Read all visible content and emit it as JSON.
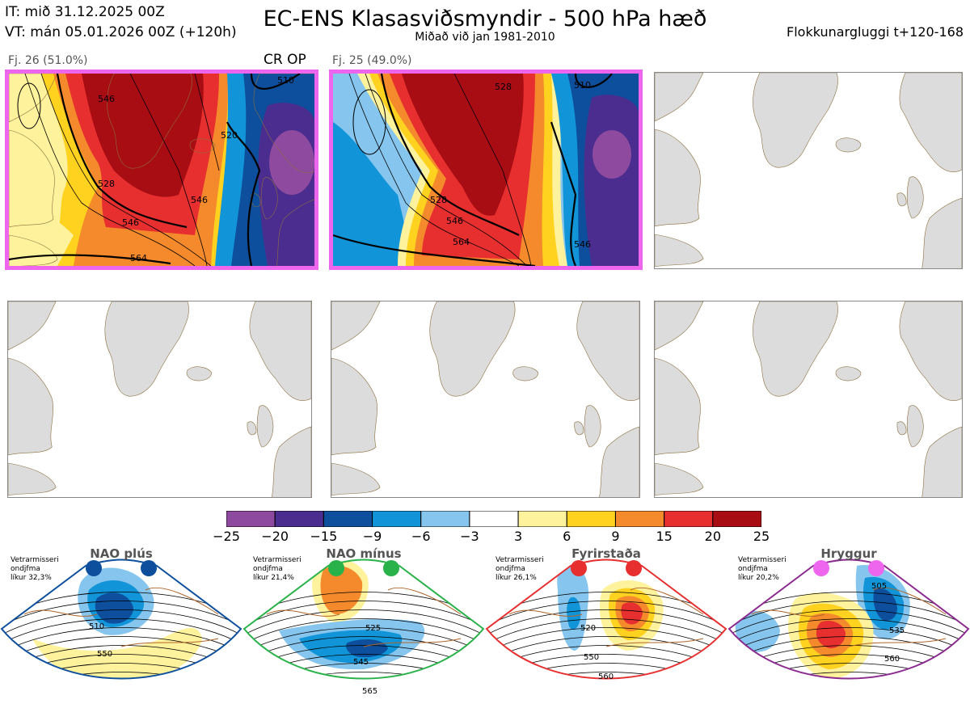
{
  "header": {
    "issue_time": "IT: mið 31.12.2025 00Z",
    "valid_time": "VT: mán 05.01.2026 00Z  (+120h)",
    "title": "EC-ENS Klasasviðsmyndir - 500 hPa hæð",
    "subtitle": "Miðað við jan 1981-2010",
    "window": "Flokkunargluggi t+120-168"
  },
  "clusters": [
    {
      "label": "Fj. 26 (51.0%)",
      "members": 26,
      "percent": 51.0,
      "tag": "CR OP",
      "contours": [
        "510",
        "520",
        "528",
        "546",
        "546",
        "546",
        "564"
      ]
    },
    {
      "label": "Fj. 25 (49.0%)",
      "members": 25,
      "percent": 49.0,
      "tag": "",
      "contours": [
        "510",
        "528",
        "528",
        "546",
        "546",
        "564"
      ]
    }
  ],
  "colorbar": {
    "ticks": [
      "−25",
      "−20",
      "−15",
      "−9",
      "−6",
      "−3",
      "3",
      "6",
      "9",
      "15",
      "20",
      "25"
    ],
    "colors": [
      "#8e4a9e",
      "#4a2d8f",
      "#0d4f9c",
      "#1194d8",
      "#86c6ee",
      "#ffffff",
      "#fff29c",
      "#ffd21f",
      "#f58a2c",
      "#e62f2e",
      "#a80d14"
    ]
  },
  "regimes": [
    {
      "name": "NAO plús",
      "prob_lines": [
        "Vetrarmisseri",
        "ondjfma",
        "líkur 32,3%"
      ],
      "dot_color": "#0d4f9c",
      "frame_color": "#0d4f9c",
      "contours": [
        "510",
        "550"
      ]
    },
    {
      "name": "NAO mínus",
      "prob_lines": [
        "Vetrarmisseri",
        "ondjfma",
        "líkur 21,4%"
      ],
      "dot_color": "#2ab24a",
      "frame_color": "#2ab24a",
      "contours": [
        "525",
        "545",
        "565"
      ]
    },
    {
      "name": "Fyrirstaða",
      "prob_lines": [
        "Vetrarmisseri",
        "ondjfma",
        "líkur 26,1%"
      ],
      "dot_color": "#e62f2e",
      "frame_color": "#e62f2e",
      "contours": [
        "520",
        "550",
        "560"
      ]
    },
    {
      "name": "Hryggur",
      "prob_lines": [
        "Vetrarmisseri",
        "ondjfma",
        "líkur 20,2%"
      ],
      "dot_color": "#ee66ee",
      "frame_color": "#8b2a8f",
      "contours": [
        "505",
        "535",
        "560"
      ]
    }
  ]
}
